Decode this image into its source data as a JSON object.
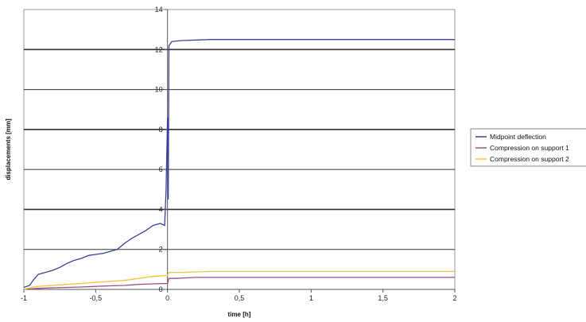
{
  "chart_data": {
    "type": "line",
    "title": "",
    "xlabel": "time [h]",
    "ylabel": "displacements [mm]",
    "xlim": [
      -1,
      2
    ],
    "ylim": [
      0,
      14
    ],
    "x_ticks": [
      -1,
      -0.5,
      0,
      0.5,
      1,
      1.5,
      2
    ],
    "x_tick_labels": [
      "-1",
      "-0,5",
      "0",
      "0,5",
      "1",
      "1,5",
      "2"
    ],
    "y_ticks": [
      0,
      2,
      4,
      6,
      8,
      10,
      12,
      14
    ],
    "y_tick_labels": [
      "0",
      "2",
      "4",
      "6",
      "8",
      "10",
      "12",
      "14"
    ],
    "grid": "horizontal major gridlines",
    "legend_position": "right",
    "series": [
      {
        "name": "Midpoint deflection",
        "color": "#3b3f9a",
        "points": [
          [
            -1.0,
            0.1
          ],
          [
            -0.96,
            0.2
          ],
          [
            -0.93,
            0.5
          ],
          [
            -0.9,
            0.75
          ],
          [
            -0.85,
            0.85
          ],
          [
            -0.8,
            0.95
          ],
          [
            -0.75,
            1.1
          ],
          [
            -0.7,
            1.3
          ],
          [
            -0.65,
            1.45
          ],
          [
            -0.6,
            1.55
          ],
          [
            -0.55,
            1.7
          ],
          [
            -0.5,
            1.75
          ],
          [
            -0.45,
            1.8
          ],
          [
            -0.4,
            1.9
          ],
          [
            -0.35,
            2.0
          ],
          [
            -0.3,
            2.3
          ],
          [
            -0.25,
            2.55
          ],
          [
            -0.2,
            2.75
          ],
          [
            -0.15,
            2.95
          ],
          [
            -0.1,
            3.2
          ],
          [
            -0.05,
            3.3
          ],
          [
            -0.02,
            3.2
          ],
          [
            -0.01,
            5.0
          ],
          [
            0.0,
            8.6
          ],
          [
            0.005,
            4.5
          ],
          [
            0.01,
            12.2
          ],
          [
            0.03,
            12.4
          ],
          [
            0.1,
            12.45
          ],
          [
            0.3,
            12.5
          ],
          [
            0.5,
            12.5
          ],
          [
            1.0,
            12.5
          ],
          [
            1.5,
            12.5
          ],
          [
            2.0,
            12.5
          ]
        ]
      },
      {
        "name": "Compression on support 1",
        "color": "#9b4f8f",
        "points": [
          [
            -1.0,
            0.0
          ],
          [
            -0.9,
            0.05
          ],
          [
            -0.8,
            0.08
          ],
          [
            -0.7,
            0.1
          ],
          [
            -0.6,
            0.12
          ],
          [
            -0.5,
            0.15
          ],
          [
            -0.4,
            0.18
          ],
          [
            -0.3,
            0.2
          ],
          [
            -0.2,
            0.25
          ],
          [
            -0.1,
            0.28
          ],
          [
            0.0,
            0.3
          ],
          [
            0.01,
            0.55
          ],
          [
            0.05,
            0.55
          ],
          [
            0.2,
            0.6
          ],
          [
            0.5,
            0.6
          ],
          [
            1.0,
            0.6
          ],
          [
            1.5,
            0.6
          ],
          [
            2.0,
            0.6
          ]
        ]
      },
      {
        "name": "Compression on support 2",
        "color": "#f2c23a",
        "points": [
          [
            -1.0,
            0.0
          ],
          [
            -0.95,
            0.1
          ],
          [
            -0.9,
            0.15
          ],
          [
            -0.8,
            0.2
          ],
          [
            -0.7,
            0.25
          ],
          [
            -0.6,
            0.3
          ],
          [
            -0.5,
            0.35
          ],
          [
            -0.4,
            0.4
          ],
          [
            -0.3,
            0.45
          ],
          [
            -0.2,
            0.55
          ],
          [
            -0.1,
            0.65
          ],
          [
            0.0,
            0.7
          ],
          [
            0.01,
            0.85
          ],
          [
            0.1,
            0.85
          ],
          [
            0.3,
            0.9
          ],
          [
            0.6,
            0.9
          ],
          [
            1.0,
            0.9
          ],
          [
            1.5,
            0.9
          ],
          [
            2.0,
            0.9
          ]
        ]
      }
    ]
  }
}
